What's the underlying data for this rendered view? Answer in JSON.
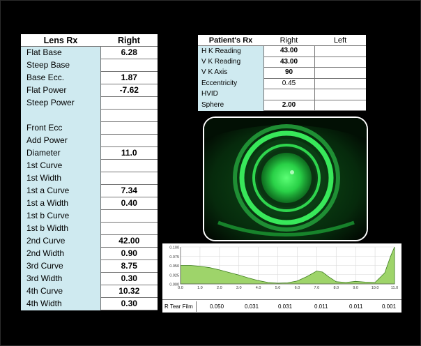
{
  "lens_rx": {
    "header_label": "Lens Rx",
    "header_right": "Right",
    "rows": [
      {
        "label": "Flat Base",
        "value": "6.28"
      },
      {
        "label": "Steep Base",
        "value": ""
      },
      {
        "label": "Base Ecc.",
        "value": "1.87"
      },
      {
        "label": "Flat Power",
        "value": "-7.62"
      },
      {
        "label": "Steep Power",
        "value": ""
      },
      {
        "label": "",
        "value": ""
      },
      {
        "label": "Front Ecc",
        "value": ""
      },
      {
        "label": "Add Power",
        "value": ""
      },
      {
        "label": "Diameter",
        "value": "11.0"
      },
      {
        "label": "1st Curve",
        "value": ""
      },
      {
        "label": "1st Width",
        "value": ""
      },
      {
        "label": "1st a Curve",
        "value": "7.34"
      },
      {
        "label": "1st a Width",
        "value": "0.40"
      },
      {
        "label": "1st b Curve",
        "value": ""
      },
      {
        "label": "1st b Width",
        "value": ""
      },
      {
        "label": "2nd Curve",
        "value": "42.00"
      },
      {
        "label": "2nd Width",
        "value": "0.90"
      },
      {
        "label": "3rd Curve",
        "value": "8.75"
      },
      {
        "label": "3rd Width",
        "value": "0.30"
      },
      {
        "label": "4th Curve",
        "value": "10.32"
      },
      {
        "label": "4th Width",
        "value": "0.30"
      }
    ]
  },
  "patient_rx": {
    "header_label": "Patient's Rx",
    "header_right": "Right",
    "header_left": "Left",
    "rows": [
      {
        "label": "H K Reading",
        "right": "43.00",
        "left": "",
        "bold": true
      },
      {
        "label": "V K Reading",
        "right": "43.00",
        "left": "",
        "bold": true
      },
      {
        "label": "V K Axis",
        "right": "90",
        "left": "",
        "bold": true
      },
      {
        "label": "Eccentricity",
        "right": "0.45",
        "left": "",
        "bold": false
      },
      {
        "label": "HVID",
        "right": "",
        "left": "",
        "bold": false
      },
      {
        "label": "Sphere",
        "right": "2.00",
        "left": "",
        "bold": true
      }
    ]
  },
  "tear_film": {
    "row_label": "R Tear Film",
    "values": [
      "0.050",
      "0.031",
      "0.031",
      "0.011",
      "0.011",
      "0.001"
    ]
  },
  "colors": {
    "label_bg": "#cfeaf0",
    "fluorescein": "#2bd94a",
    "chart_fill": "#9ed46a"
  },
  "chart_data": {
    "type": "area",
    "x": [
      0.0,
      0.5,
      1.0,
      1.5,
      2.0,
      2.5,
      3.0,
      3.5,
      4.0,
      4.5,
      5.0,
      5.5,
      6.0,
      6.5,
      7.0,
      7.3,
      7.6,
      8.0,
      8.5,
      9.0,
      9.5,
      10.0,
      10.5,
      10.8,
      11.0
    ],
    "y": [
      0.05,
      0.05,
      0.048,
      0.044,
      0.038,
      0.031,
      0.024,
      0.016,
      0.009,
      0.004,
      0.002,
      0.003,
      0.008,
      0.02,
      0.035,
      0.032,
      0.02,
      0.006,
      0.004,
      0.007,
      0.005,
      0.004,
      0.03,
      0.075,
      0.1
    ],
    "xticks": [
      "0.0",
      "1.0",
      "2.0",
      "3.0",
      "4.0",
      "5.0",
      "6.0",
      "7.0",
      "8.0",
      "9.0",
      "10.0",
      "11.0"
    ],
    "yticks": [
      "0.100",
      "0.075",
      "0.050",
      "0.025",
      "0.000"
    ],
    "xlim": [
      0,
      11
    ],
    "ylim": [
      0,
      0.1
    ],
    "grid": true,
    "xlabel": "",
    "ylabel": "",
    "title": ""
  }
}
